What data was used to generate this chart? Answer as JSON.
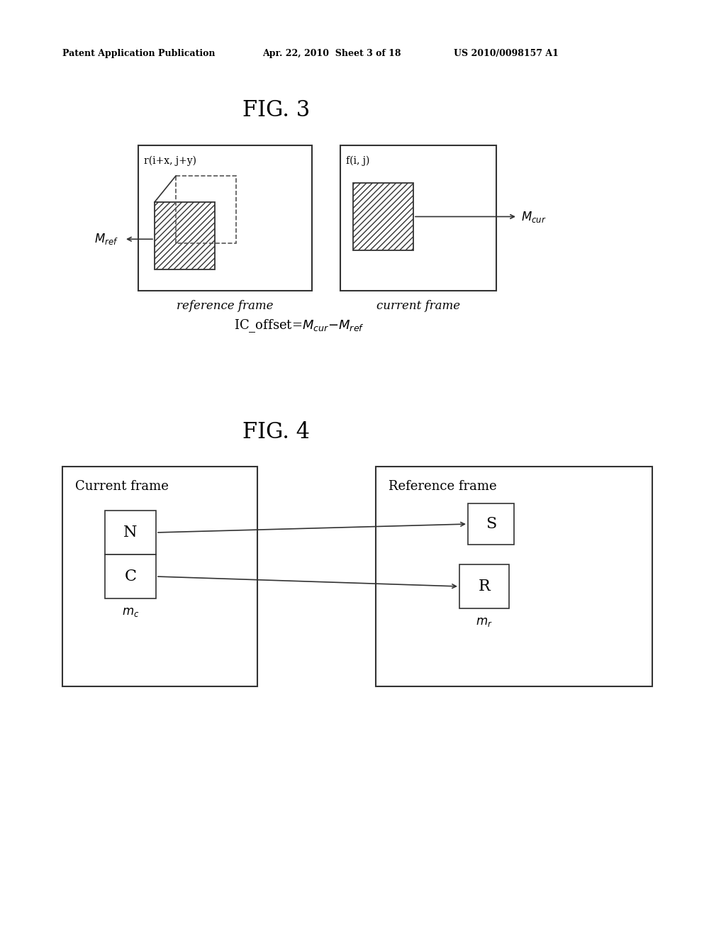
{
  "bg_color": "#ffffff",
  "header_line1": "Patent Application Publication",
  "header_line2": "Apr. 22, 2010  Sheet 3 of 18",
  "header_line3": "US 2010/0098157 A1",
  "fig3_title": "FIG. 3",
  "fig4_title": "FIG. 4",
  "fig3": {
    "ref_frame_label": "reference frame",
    "cur_frame_label": "current frame",
    "ref_label": "r(i+x, j+y)",
    "cur_label": "f(i, j)"
  },
  "fig4": {
    "current_frame_label": "Current frame",
    "reference_frame_label": "Reference frame",
    "N_label": "N",
    "C_label": "C",
    "S_label": "S",
    "R_label": "R"
  }
}
